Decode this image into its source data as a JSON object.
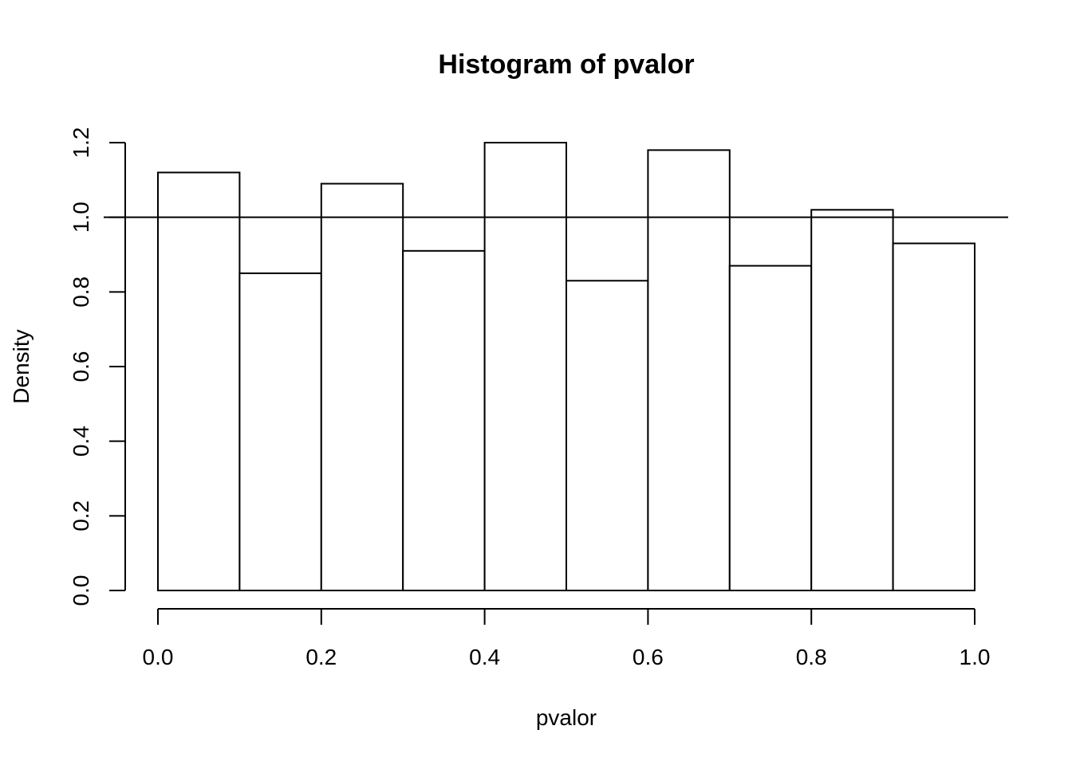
{
  "chart_data": {
    "type": "bar",
    "title": "Histogram of pvalor",
    "xlabel": "pvalor",
    "ylabel": "Density",
    "bins": [
      {
        "start": 0.0,
        "end": 0.1,
        "density": 1.12
      },
      {
        "start": 0.1,
        "end": 0.2,
        "density": 0.85
      },
      {
        "start": 0.2,
        "end": 0.3,
        "density": 1.09
      },
      {
        "start": 0.3,
        "end": 0.4,
        "density": 0.91
      },
      {
        "start": 0.4,
        "end": 0.5,
        "density": 1.2
      },
      {
        "start": 0.5,
        "end": 0.6,
        "density": 0.83
      },
      {
        "start": 0.6,
        "end": 0.7,
        "density": 1.18
      },
      {
        "start": 0.7,
        "end": 0.8,
        "density": 0.87
      },
      {
        "start": 0.8,
        "end": 0.9,
        "density": 1.02
      },
      {
        "start": 0.9,
        "end": 1.0,
        "density": 0.93
      }
    ],
    "reference_line": {
      "orientation": "horizontal",
      "y": 1.0
    },
    "xlim": [
      0.0,
      1.0
    ],
    "ylim": [
      0.0,
      1.2
    ],
    "xticks": [
      "0.0",
      "0.2",
      "0.4",
      "0.6",
      "0.8",
      "1.0"
    ],
    "yticks": [
      "0.0",
      "0.2",
      "0.4",
      "0.6",
      "0.8",
      "1.0",
      "1.2"
    ],
    "grid": false,
    "bar_fill": "#ffffff",
    "stroke_color": "#000000"
  }
}
